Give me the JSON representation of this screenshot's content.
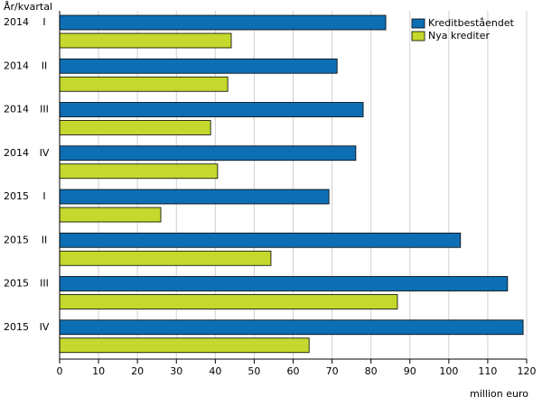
{
  "chart_data": {
    "type": "hbar",
    "y_label": "År/kvartal",
    "x_label": "million euro",
    "categories": [
      [
        "2014",
        "I"
      ],
      [
        "2014",
        "II"
      ],
      [
        "2014",
        "III"
      ],
      [
        "2014",
        "IV"
      ],
      [
        "2015",
        "I"
      ],
      [
        "2015",
        "II"
      ],
      [
        "2015",
        "III"
      ],
      [
        "2015",
        "IV"
      ]
    ],
    "series": [
      {
        "name": "Kreditbeståendet",
        "color": "#0e6eb4",
        "values": [
          83.8,
          71.3,
          78,
          76.1,
          69.2,
          103,
          115.1,
          119.1
        ]
      },
      {
        "name": "Nya krediter",
        "color": "#c4d82e",
        "values": [
          44.1,
          43.2,
          38.8,
          40.6,
          26,
          54.3,
          86.8,
          64.1
        ]
      }
    ],
    "xlim": [
      0,
      120
    ],
    "xticks": [
      0,
      10,
      20,
      30,
      40,
      50,
      60,
      70,
      80,
      90,
      100,
      110,
      120
    ],
    "grid": true,
    "legend": "top-right"
  }
}
